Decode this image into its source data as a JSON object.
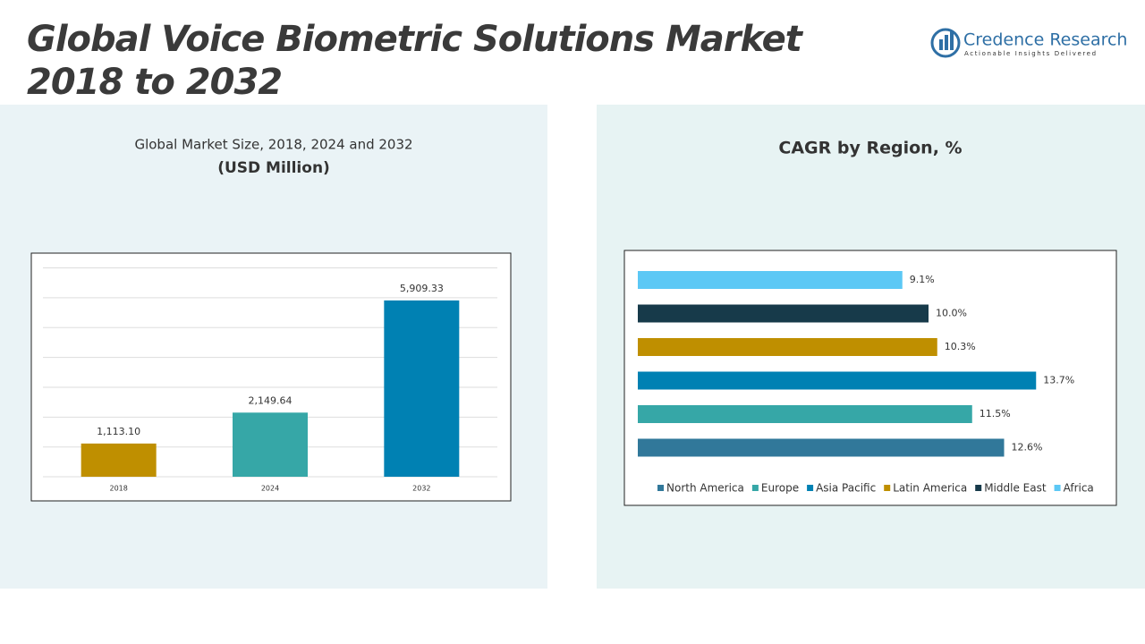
{
  "header": {
    "title": "Global Voice Biometric Solutions Market 2018 to 2032",
    "brand": "Credence Research",
    "tagline": "Actionable Insights Delivered"
  },
  "chart_data": [
    {
      "type": "bar",
      "title": "Global Market Size, 2018, 2024 and 2032",
      "subtitle": "(USD Million)",
      "categories": [
        "2018",
        "2024",
        "2032"
      ],
      "values": [
        1113.1,
        2149.64,
        5909.33
      ],
      "value_labels": [
        "1,113.10",
        "2,149.64",
        "5,909.33"
      ],
      "colors": [
        "#bf8f00",
        "#36a7a7",
        "#0081b3"
      ],
      "ylim": [
        0,
        7000
      ],
      "grid": true
    },
    {
      "type": "hbar",
      "title": "CAGR by Region, %",
      "categories": [
        "North America",
        "Europe",
        "Asia Pacific",
        "Latin America",
        "Middle East",
        "Africa"
      ],
      "values": [
        12.6,
        11.5,
        13.7,
        10.3,
        10.0,
        9.1
      ],
      "value_labels": [
        "12.6%",
        "11.5%",
        "13.7%",
        "10.3%",
        "10.0%",
        "9.1%"
      ],
      "colors": [
        "#31789a",
        "#36a7a7",
        "#0081b3",
        "#bf8f00",
        "#173a4a",
        "#5cc8f5"
      ],
      "xlim": [
        0,
        16
      ],
      "legend": "bottom"
    }
  ]
}
